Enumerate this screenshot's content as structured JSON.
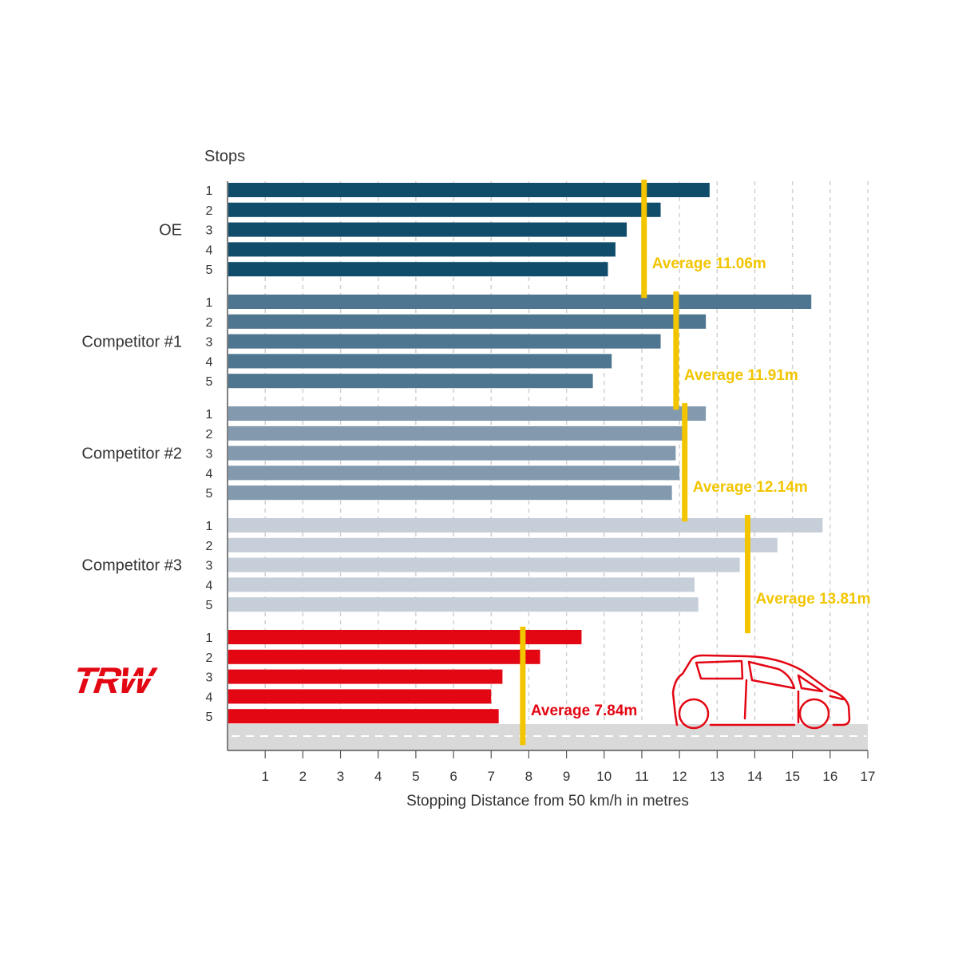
{
  "chart_data": {
    "type": "bar",
    "orientation": "horizontal",
    "y_title": "Stops",
    "xlabel": "Stopping Distance from 50 km/h in metres",
    "xlim": [
      0,
      17
    ],
    "x_ticks": [
      1,
      2,
      3,
      4,
      5,
      6,
      7,
      8,
      9,
      10,
      11,
      12,
      13,
      14,
      15,
      16,
      17
    ],
    "grid": "vertical dashed",
    "stop_labels": [
      "1",
      "2",
      "3",
      "4",
      "5"
    ],
    "groups": [
      {
        "name": "OE",
        "color": "#0f4d6b",
        "values": [
          12.8,
          11.5,
          10.6,
          10.3,
          10.1
        ],
        "average": 11.06,
        "average_label": "Average 11.06m",
        "label_color": "#f2c500"
      },
      {
        "name": "Competitor #1",
        "color": "#4f7690",
        "values": [
          15.5,
          12.7,
          11.5,
          10.2,
          9.7
        ],
        "average": 11.91,
        "average_label": "Average 11.91m",
        "label_color": "#f2c500"
      },
      {
        "name": "Competitor #2",
        "color": "#8299ae",
        "values": [
          12.7,
          12.2,
          11.9,
          12.0,
          11.8
        ],
        "average": 12.14,
        "average_label": "Average 12.14m",
        "label_color": "#f2c500"
      },
      {
        "name": "Competitor #3",
        "color": "#c5ced9",
        "values": [
          15.8,
          14.6,
          13.6,
          12.4,
          12.5
        ],
        "average": 13.81,
        "average_label": "Average 13.81m",
        "label_color": "#f2c500"
      },
      {
        "name": "TRW",
        "logo": true,
        "color": "#e30613",
        "values": [
          9.4,
          8.3,
          7.3,
          7.0,
          7.2
        ],
        "average": 7.84,
        "average_label": "Average 7.84m",
        "label_color": "#e30613"
      }
    ],
    "average_line_color": "#f2c500",
    "logo_text": "TRW",
    "illustration": "car-icon"
  }
}
